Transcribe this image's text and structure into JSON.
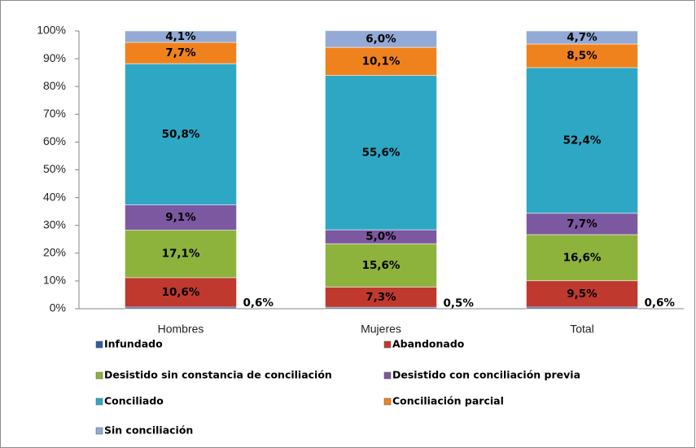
{
  "chart_data": {
    "type": "stacked_bar",
    "categories": [
      "Hombres",
      "Mujeres",
      "Total"
    ],
    "series": [
      {
        "name": "Infundado",
        "color": "#2e5c9e",
        "values": [
          0.6,
          0.5,
          0.6
        ],
        "value_labels": [
          "0,6%",
          "0,5%",
          "0,6%"
        ]
      },
      {
        "name": "Abandonado",
        "color": "#c0392f",
        "values": [
          10.6,
          7.3,
          9.5
        ],
        "value_labels": [
          "10,6%",
          "7,3%",
          "9,5%"
        ]
      },
      {
        "name": "Desistido sin constancia de conciliación",
        "color": "#8db33d",
        "values": [
          17.1,
          15.6,
          16.6
        ],
        "value_labels": [
          "17,1%",
          "15,6%",
          "16,6%"
        ]
      },
      {
        "name": "Desistido con conciliación previa",
        "color": "#7b58a0",
        "values": [
          9.1,
          5.0,
          7.7
        ],
        "value_labels": [
          "9,1%",
          "5,0%",
          "7,7%"
        ]
      },
      {
        "name": "Conciliado",
        "color": "#2ea7c4",
        "values": [
          50.8,
          55.6,
          52.4
        ],
        "value_labels": [
          "50,8%",
          "55,6%",
          "52,4%"
        ]
      },
      {
        "name": "Conciliación parcial",
        "color": "#f0821e",
        "values": [
          7.7,
          10.1,
          8.5
        ],
        "value_labels": [
          "7,7%",
          "10,1%",
          "8,5%"
        ]
      },
      {
        "name": "Sin conciliación",
        "color": "#93aad6",
        "values": [
          4.1,
          6.0,
          4.7
        ],
        "value_labels": [
          "4,1%",
          "6,0%",
          "4,7%"
        ]
      }
    ],
    "ylim": [
      0,
      100
    ],
    "yticks": [
      {
        "value": 0,
        "label": "0%"
      },
      {
        "value": 10,
        "label": "10%"
      },
      {
        "value": 20,
        "label": "20%"
      },
      {
        "value": 30,
        "label": "30%"
      },
      {
        "value": 40,
        "label": "40%"
      },
      {
        "value": 50,
        "label": "50%"
      },
      {
        "value": 60,
        "label": "60%"
      },
      {
        "value": 70,
        "label": "70%"
      },
      {
        "value": 80,
        "label": "80%"
      },
      {
        "value": 90,
        "label": "90%"
      },
      {
        "value": 100,
        "label": "100%"
      }
    ]
  }
}
